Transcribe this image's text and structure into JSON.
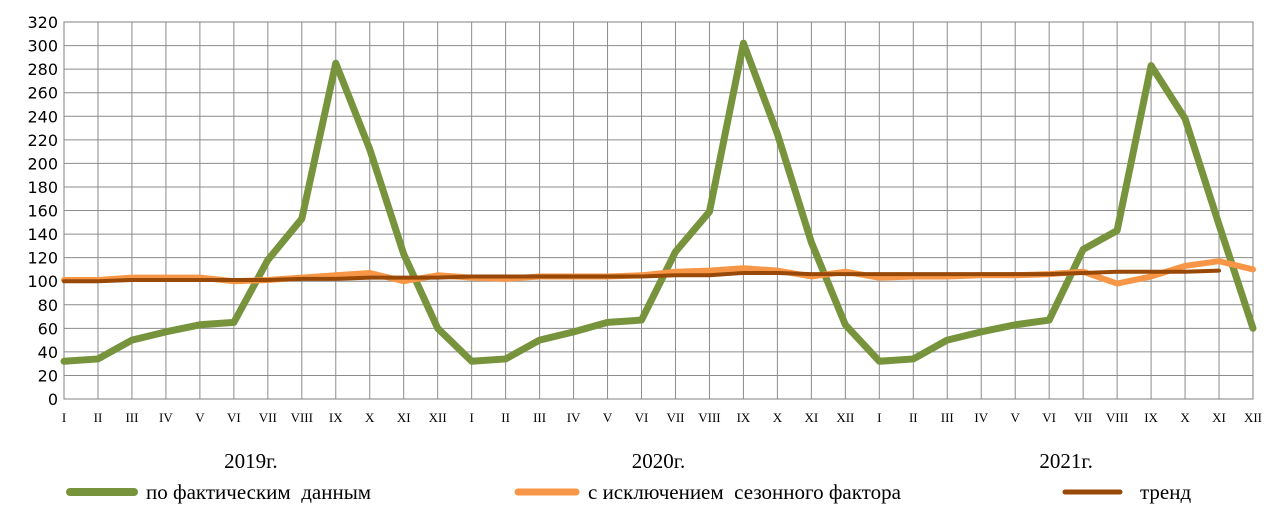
{
  "chart_data": {
    "type": "line",
    "title": "",
    "xlabel": "",
    "ylabel": "",
    "ylim": [
      0,
      320
    ],
    "ytick_step": 20,
    "grid": true,
    "legend_position": "bottom",
    "x": [
      "I",
      "II",
      "III",
      "IV",
      "V",
      "VI",
      "VII",
      "VIII",
      "IX",
      "X",
      "XI",
      "XII",
      "I",
      "II",
      "III",
      "IV",
      "V",
      "VI",
      "VII",
      "VIII",
      "IX",
      "X",
      "XI",
      "XII",
      "I",
      "II",
      "III",
      "IV",
      "V",
      "VI",
      "VII",
      "VIII",
      "IX",
      "X",
      "XI",
      "XII"
    ],
    "year_labels": [
      "2019г.",
      "2020г.",
      "2021г."
    ],
    "series": [
      {
        "name": "по фактическим  данным",
        "color": "#77933c",
        "values": [
          32,
          34,
          50,
          57,
          63,
          65,
          118,
          153,
          285,
          212,
          123,
          60,
          32,
          34,
          50,
          57,
          65,
          67,
          125,
          159,
          302,
          225,
          133,
          63,
          32,
          34,
          50,
          57,
          63,
          67,
          127,
          143,
          283,
          238,
          148,
          60
        ]
      },
      {
        "name": "с исключением  сезонного фактора",
        "color": "#f79646",
        "values": [
          101,
          101,
          103,
          103,
          103,
          100,
          101,
          103,
          105,
          107,
          100,
          105,
          103,
          102,
          104,
          104,
          104,
          105,
          108,
          109,
          111,
          109,
          104,
          108,
          103,
          104,
          104,
          105,
          105,
          106,
          108,
          98,
          104,
          113,
          117,
          110
        ]
      },
      {
        "name": "тренд",
        "color": "#984807",
        "values": [
          100,
          100,
          101,
          101,
          101,
          101,
          101,
          102,
          102,
          103,
          103,
          103,
          104,
          104,
          104,
          104,
          104,
          104,
          105,
          105,
          107,
          107,
          106,
          106,
          106,
          106,
          106,
          106,
          106,
          106,
          107,
          108,
          108,
          108,
          109,
          null
        ]
      }
    ]
  }
}
